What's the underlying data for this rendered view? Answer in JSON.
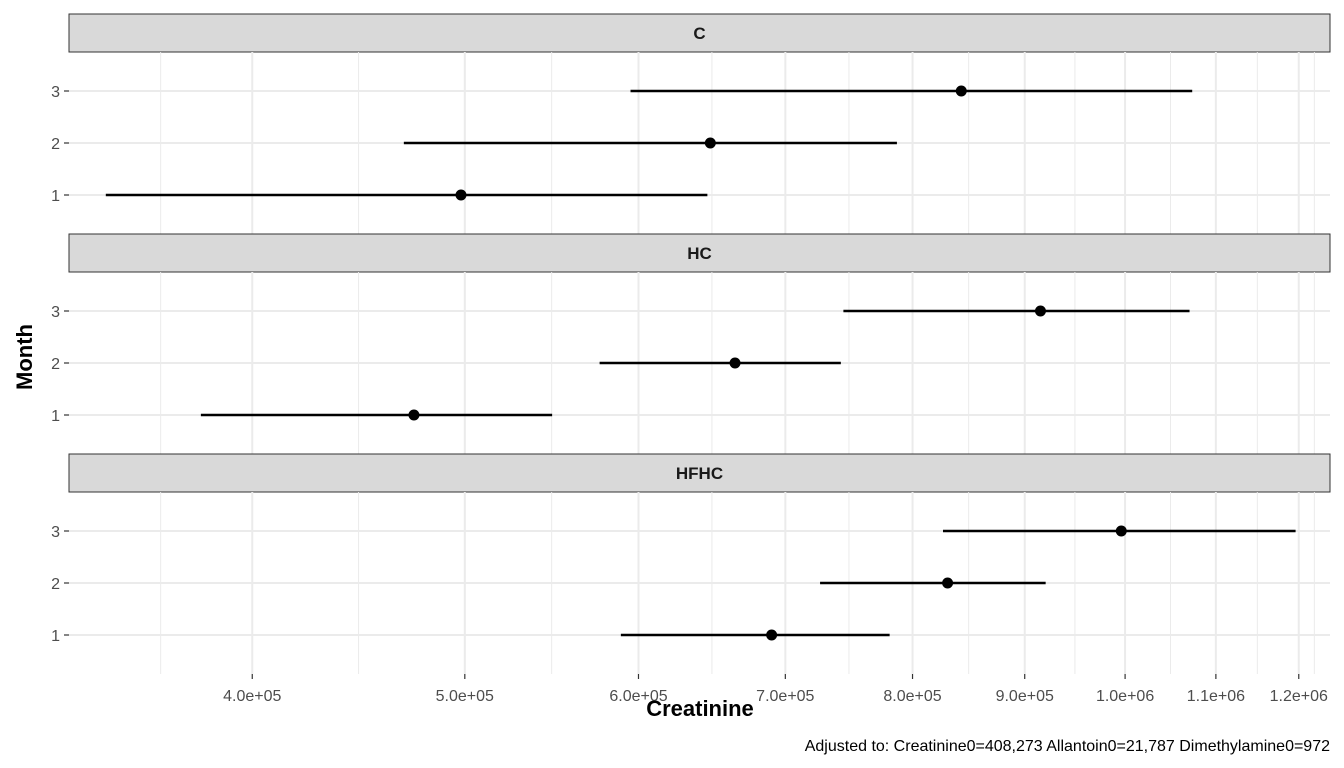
{
  "chart_data": {
    "type": "scatter",
    "subtype": "faceted point estimate with interval lines",
    "xlabel": "Creatinine",
    "ylabel": "Month",
    "x_scale": "log10",
    "xlim": [
      330000,
      1240000
    ],
    "x_ticks": [
      {
        "value": 400000,
        "label": "4.0e+05"
      },
      {
        "value": 500000,
        "label": "5.0e+05"
      },
      {
        "value": 600000,
        "label": "6.0e+05"
      },
      {
        "value": 700000,
        "label": "7.0e+05"
      },
      {
        "value": 800000,
        "label": "8.0e+05"
      },
      {
        "value": 900000,
        "label": "9.0e+05"
      },
      {
        "value": 1000000,
        "label": "1.0e+06"
      },
      {
        "value": 1100000,
        "label": "1.1e+06"
      },
      {
        "value": 1200000,
        "label": "1.2e+06"
      }
    ],
    "y_categories": [
      "1",
      "2",
      "3"
    ],
    "grid": true,
    "caption": "Adjusted to: Creatinine0=408,273 Allantoin0=21,787 Dimethylamine0=972",
    "panels": [
      {
        "name": "C",
        "points": [
          {
            "month": "1",
            "estimate": 498000,
            "lower": 343000,
            "upper": 645000
          },
          {
            "month": "2",
            "estimate": 647000,
            "lower": 469000,
            "upper": 787000
          },
          {
            "month": "3",
            "estimate": 842000,
            "lower": 595000,
            "upper": 1073000
          }
        ]
      },
      {
        "name": "HC",
        "points": [
          {
            "month": "1",
            "estimate": 474000,
            "lower": 379000,
            "upper": 548000
          },
          {
            "month": "2",
            "estimate": 664000,
            "lower": 576000,
            "upper": 742000
          },
          {
            "month": "3",
            "estimate": 915000,
            "lower": 744000,
            "upper": 1070000
          }
        ]
      },
      {
        "name": "HFHC",
        "points": [
          {
            "month": "1",
            "estimate": 690000,
            "lower": 589000,
            "upper": 781000
          },
          {
            "month": "2",
            "estimate": 830000,
            "lower": 726000,
            "upper": 920000
          },
          {
            "month": "3",
            "estimate": 996000,
            "lower": 826000,
            "upper": 1196000
          }
        ]
      }
    ]
  }
}
